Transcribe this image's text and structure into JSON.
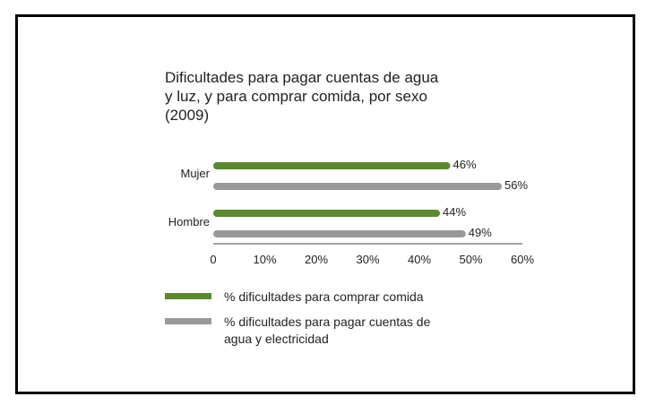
{
  "chart_data": {
    "type": "bar",
    "orientation": "horizontal",
    "title_lines": [
      "Dificultades para pagar cuentas de agua",
      "y luz, y para comprar comida, por sexo",
      "(2009)"
    ],
    "categories": [
      "Mujer",
      "Hombre"
    ],
    "series": [
      {
        "name": "% dificultades para comprar comida",
        "values": [
          46,
          44
        ],
        "color": "#5a8a2c"
      },
      {
        "name": "% dificultades para pagar cuentas de agua y electricidad",
        "values": [
          56,
          49
        ],
        "color": "#999999"
      }
    ],
    "value_labels": [
      [
        "46%",
        "44%"
      ],
      [
        "56%",
        "49%"
      ]
    ],
    "xlim": [
      0,
      60
    ],
    "x_ticks": [
      {
        "value": 0,
        "label": "0"
      },
      {
        "value": 10,
        "label": "10%"
      },
      {
        "value": 20,
        "label": "20%"
      },
      {
        "value": 30,
        "label": "30%"
      },
      {
        "value": 40,
        "label": "40%"
      },
      {
        "value": 50,
        "label": "50%"
      },
      {
        "value": 60,
        "label": "60%"
      }
    ],
    "grid": false,
    "legend_position": "bottom",
    "legend": [
      {
        "lines": [
          "% dificultades para comprar comida"
        ],
        "color": "#5a8a2c"
      },
      {
        "lines": [
          "% dificultades para pagar cuentas de",
          "agua y electricidad"
        ],
        "color": "#999999"
      }
    ]
  }
}
